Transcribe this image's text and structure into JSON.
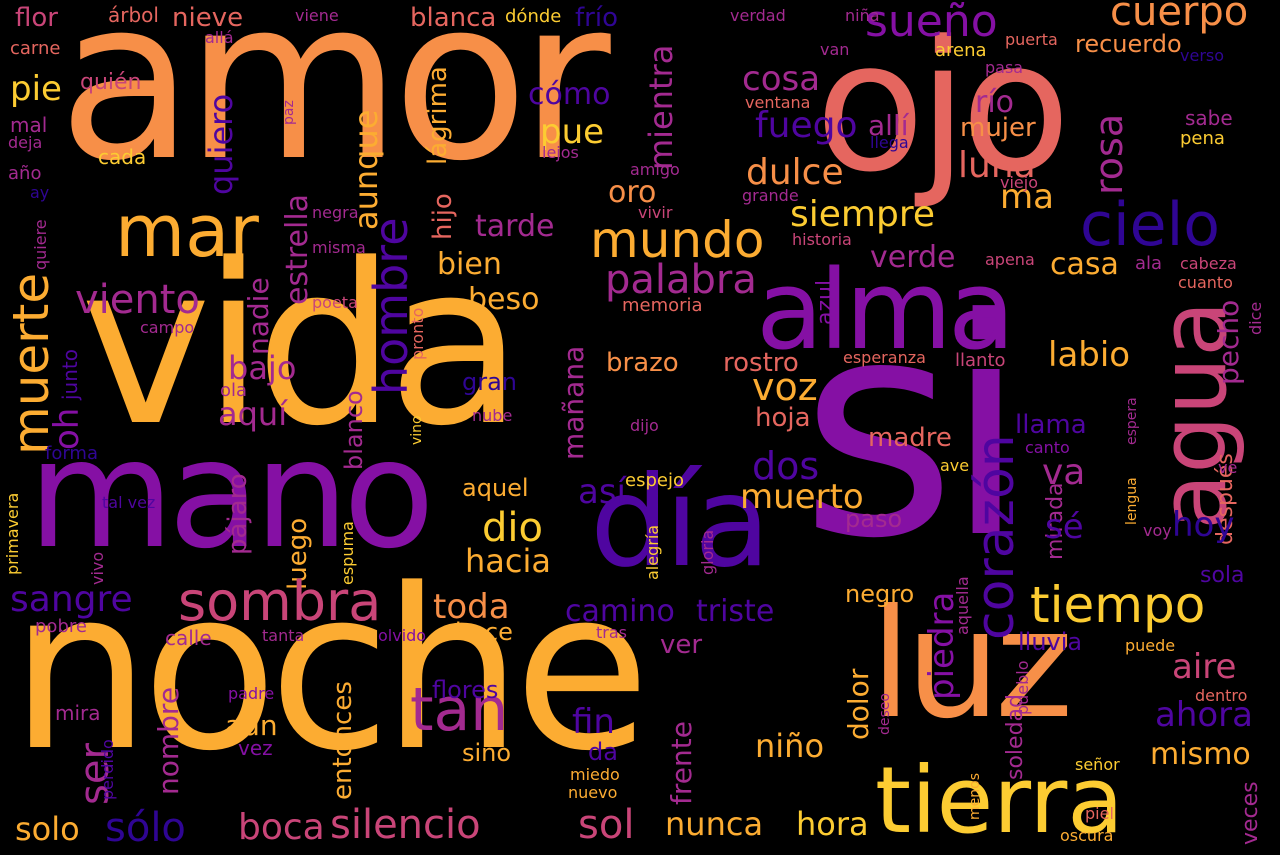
{
  "palette": {
    "yellow": "#fccc32",
    "amber": "#fcac32",
    "orange": "#f78f48",
    "salmon": "#e5665f",
    "rose": "#c94578",
    "magenta": "#a32a90",
    "purple": "#8510a4",
    "indigo": "#4f05a0",
    "navy": "#2f0594",
    "deep": "#1a0a7a"
  },
  "words": {
    "amor": "amor",
    "ojo": "ojo",
    "vida": "vida",
    "si": "si",
    "noche": "noche",
    "mano": "mano",
    "alma": "alma",
    "dia": "día",
    "luz": "luz",
    "tierra": "tierra",
    "agua": "agua",
    "mar": "mar",
    "cielo": "cielo",
    "corazon": "corazón",
    "sombra": "sombra",
    "tiempo": "tiempo",
    "mundo": "mundo",
    "muerte": "muerte",
    "hombre": "hombre",
    "tan": "tan",
    "sueno": "sueño",
    "cuerpo": "cuerpo",
    "silencio": "silencio",
    "siempre": "siempre",
    "palabra": "palabra",
    "viento": "viento",
    "fuego": "fuego",
    "dulce": "dulce",
    "rosa": "rosa",
    "luna": "luna",
    "estrella": "estrella",
    "aunque": "aunque",
    "quiero": "quiero",
    "mientra": "mientra",
    "camino": "camino",
    "triste": "triste",
    "sangre": "sangre",
    "boca": "boca",
    "solo": "solo",
    "solo2": "sólo",
    "sol": "sol",
    "nunca": "nunca",
    "hora": "hora",
    "toda": "toda",
    "muerto": "muerto",
    "hacia": "hacia",
    "dio": "dio",
    "voz": "voz",
    "dos": "dos",
    "piedra": "piedra",
    "aire": "aire",
    "ahora": "ahora",
    "mismo": "mismo",
    "hoy": "hoy",
    "va": "va",
    "se": "sé",
    "labio": "labio",
    "pecho": "pecho",
    "casa": "casa",
    "verde": "verde",
    "azul": "azul",
    "bien": "bien",
    "beso": "beso",
    "tarde": "tarde",
    "cosa": "cosa",
    "pue": "pue",
    "como": "cómo",
    "rio": "río",
    "alli": "allí",
    "mujer": "mujer",
    "recuerdo": "recuerdo",
    "ma": "ma",
    "oro": "oro",
    "lagrima": "lágrima",
    "hijo": "hijo",
    "nadie": "nadie",
    "bajo": "bajo",
    "aqui": "aquí",
    "oh": "oh",
    "pie": "pie",
    "quien": "quién",
    "flor": "flor",
    "arbol": "árbol",
    "nieve": "nieve",
    "blanca": "blanca",
    "donde": "dónde",
    "frio": "frío",
    "viene": "viene",
    "verdad": "verdad",
    "nina": "niña",
    "carne": "carne",
    "alla": "allá",
    "van": "van",
    "arena": "arena",
    "puerta": "puerta",
    "verso": "verso",
    "pasa": "pasa",
    "ventana": "ventana",
    "sabe": "sabe",
    "pena": "pena",
    "paz": "paz",
    "llega": "llega",
    "mal": "mal",
    "deja": "deja",
    "cada": "cada",
    "lejos": "lejos",
    "amigo": "amigo",
    "grande": "grande",
    "viejo": "viejo",
    "ano": "año",
    "ay": "ay",
    "quiere": "quiere",
    "negra": "negra",
    "vivir": "vivir",
    "misma": "misma",
    "historia": "historia",
    "apena": "apena",
    "ala": "ala",
    "cabeza": "cabeza",
    "cuanto": "cuanto",
    "poeta": "poeta",
    "memoria": "memoria",
    "campo": "campo",
    "pronto": "pronto",
    "dice": "dice",
    "junto": "junto",
    "brazo": "brazo",
    "rostro": "rostro",
    "esperanza": "esperanza",
    "llanto": "llanto",
    "manana": "mañana",
    "blanco": "blanco",
    "gran": "gran",
    "ola": "ola",
    "nube": "nube",
    "hoja": "hoja",
    "madre": "madre",
    "llama": "llama",
    "despues": "después",
    "canto": "canto",
    "espera": "espera",
    "vino": "vino",
    "dijo": "dijo",
    "forma": "forma",
    "ave": "ave",
    "ve": "ve",
    "lengua": "lengua",
    "mirada": "mirada",
    "aquel": "aquel",
    "espejo": "espejo",
    "pajaro": "pájaro",
    "primavera": "primavera",
    "talvez": "tal vez",
    "vivo": "vivo",
    "espuma": "espuma",
    "alegria": "alegría",
    "gloria": "gloria",
    "luego": "luego",
    "paso": "paso",
    "soledad": "soledad",
    "voy": "voy",
    "sola": "sola",
    "pobre": "pobre",
    "calle": "calle",
    "tanta": "tanta",
    "olvido": "olvido",
    "hace": "hace",
    "tras": "tras",
    "ver": "ver",
    "negro": "negro",
    "aquella": "aquella",
    "puede": "puede",
    "lluvia": "lluvia",
    "pueblo": "pueblo",
    "dentro": "dentro",
    "flores": "flores",
    "tal": "tal",
    "padre": "padre",
    "deseo": "deseo",
    "dolor": "dolor",
    "frente": "frente",
    "fin": "fin",
    "mira": "mira",
    "aun": "aún",
    "vez": "vez",
    "nombre": "nombre",
    "ser": "ser",
    "entonces": "entonces",
    "sino": "sino",
    "da": "da",
    "nino": "niño",
    "perdido": "perdido",
    "miedo": "miedo",
    "nuevo": "nuevo",
    "menos": "menos",
    "senor": "señor",
    "piel": "piel",
    "oscura": "oscura",
    "veces": "veces",
    "asi": "así"
  }
}
